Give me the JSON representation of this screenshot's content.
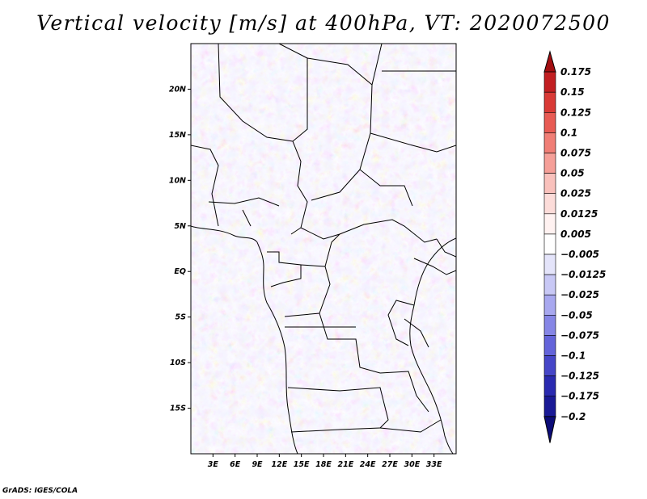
{
  "title": "Vertical velocity [m/s] at 400hPa, VT: 2020072500",
  "credit": "GrADS: IGES/COLA",
  "map": {
    "lon_range": [
      0,
      36
    ],
    "lat_range": [
      -20,
      25
    ],
    "lon_ticks": [
      "3E",
      "6E",
      "9E",
      "12E",
      "15E",
      "18E",
      "21E",
      "24E",
      "27E",
      "30E",
      "33E"
    ],
    "lat_ticks": [
      "20N",
      "15N",
      "10N",
      "5N",
      "EQ",
      "5S",
      "10S",
      "15S"
    ],
    "colorbar": {
      "labels": [
        "0.175",
        "0.15",
        "0.125",
        "0.1",
        "0.075",
        "0.05",
        "0.025",
        "0.0125",
        "0.005",
        "-0.005",
        "-0.0125",
        "-0.025",
        "-0.05",
        "-0.075",
        "-0.1",
        "-0.125",
        "-0.175",
        "-0.2"
      ],
      "colors": [
        "#a30f12",
        "#c21f22",
        "#d93a36",
        "#e85b54",
        "#f07e76",
        "#f59f98",
        "#f9c1bc",
        "#fcdcd9",
        "#fff2f1",
        "#ffffff",
        "#e4e4fa",
        "#c8c8f5",
        "#a8a8ef",
        "#8686e6",
        "#6464da",
        "#4646c8",
        "#2a2ab0",
        "#1a1a96",
        "#0c0c78"
      ]
    }
  }
}
